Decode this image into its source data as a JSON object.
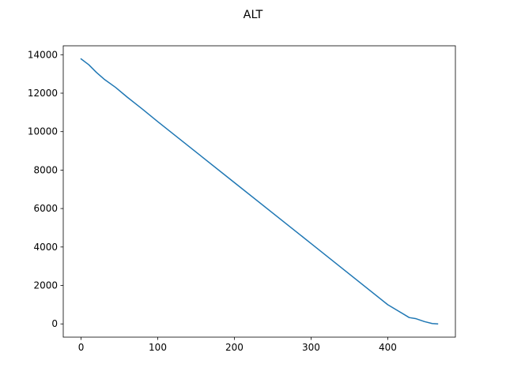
{
  "chart_data": {
    "type": "line",
    "title": "ALT",
    "xlabel": "",
    "ylabel": "",
    "xlim": [
      -23.25,
      488.25
    ],
    "ylim": [
      -688.75,
      14463.75
    ],
    "xticks": [
      0,
      100,
      200,
      300,
      400
    ],
    "yticks": [
      0,
      2000,
      4000,
      6000,
      8000,
      10000,
      12000,
      14000
    ],
    "grid": false,
    "legend": "none",
    "series": [
      {
        "color": "#1f77b4",
        "x": [
          0,
          10,
          20,
          30,
          45,
          60,
          80,
          100,
          200,
          300,
          400,
          428,
          437,
          448,
          458,
          465
        ],
        "y": [
          13780,
          13480,
          13080,
          12730,
          12300,
          11800,
          11170,
          10520,
          7350,
          4180,
          1000,
          330,
          270,
          120,
          20,
          0
        ]
      }
    ]
  }
}
